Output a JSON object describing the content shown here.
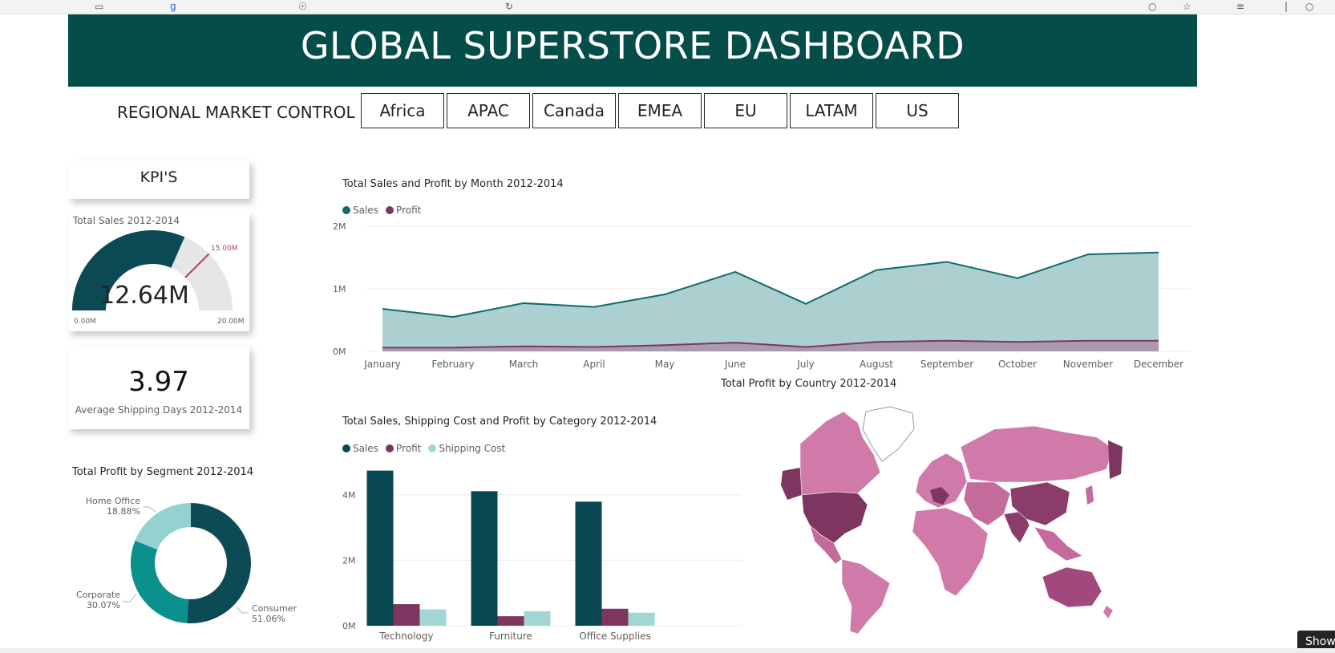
{
  "header": {
    "title": "GLOBAL SUPERSTORE DASHBOARD"
  },
  "region_control": {
    "label": "REGIONAL MARKET CONTROL",
    "buttons": [
      "Africa",
      "APAC",
      "Canada",
      "EMEA",
      "EU",
      "LATAM",
      "US"
    ]
  },
  "kpis": {
    "title": "KPI'S",
    "total_sales": {
      "title": "Total Sales 2012-2014",
      "value_label": "12.64M",
      "min_label": "0.00M",
      "max_label": "20.00M",
      "target_label": "15.00M",
      "value": 12.64,
      "min": 0,
      "max": 20,
      "target": 15
    },
    "avg_shipping": {
      "value_label": "3.97",
      "caption": "Average Shipping Days 2012-2014"
    }
  },
  "colors": {
    "header_bg": "#044d48",
    "sales": "#0e6b6e",
    "sales_area": "#acd0cf",
    "profit": "#7e3660",
    "shipping": "#a1d6d5",
    "bar_sales": "#084852",
    "donut_consumer": "#0c4a55",
    "donut_corporate": "#0a918e",
    "donut_home_office": "#95d1d1"
  },
  "segment_chart": {
    "title": "Total Profit by Segment 2012-2014",
    "slices": [
      {
        "name": "Consumer",
        "pct_label": "51.06%",
        "value": 51.06
      },
      {
        "name": "Corporate",
        "pct_label": "30.07%",
        "value": 30.07
      },
      {
        "name": "Home Office",
        "pct_label": "18.88%",
        "value": 18.88
      }
    ]
  },
  "map_chart": {
    "title": "Total Profit by Country 2012-2014"
  },
  "misc": {
    "show_button": "Show"
  },
  "chart_data": [
    {
      "type": "area",
      "title": "Total Sales and Profit by Month 2012-2014",
      "categories": [
        "January",
        "February",
        "March",
        "April",
        "May",
        "June",
        "July",
        "August",
        "September",
        "October",
        "November",
        "December"
      ],
      "series": [
        {
          "name": "Sales",
          "values": [
            0.68,
            0.55,
            0.77,
            0.71,
            0.91,
            1.27,
            0.76,
            1.3,
            1.43,
            1.17,
            1.55,
            1.58
          ]
        },
        {
          "name": "Profit",
          "values": [
            0.06,
            0.06,
            0.08,
            0.07,
            0.1,
            0.14,
            0.07,
            0.15,
            0.17,
            0.15,
            0.17,
            0.17
          ]
        }
      ],
      "y_ticks": [
        "0M",
        "1M",
        "2M"
      ],
      "ylim": [
        0,
        2
      ],
      "legend": "top-left",
      "grid": true
    },
    {
      "type": "bar",
      "title": "Total Sales, Shipping Cost and Profit by Category 2012-2014",
      "categories": [
        "Technology",
        "Furniture",
        "Office Supplies"
      ],
      "series": [
        {
          "name": "Sales",
          "values": [
            4.74,
            4.11,
            3.79
          ]
        },
        {
          "name": "Profit",
          "values": [
            0.66,
            0.29,
            0.52
          ]
        },
        {
          "name": "Shipping Cost",
          "values": [
            0.5,
            0.44,
            0.4
          ]
        }
      ],
      "y_ticks": [
        "0M",
        "2M",
        "4M"
      ],
      "ylim": [
        0,
        5
      ],
      "legend": "top-left",
      "grid": true
    }
  ]
}
